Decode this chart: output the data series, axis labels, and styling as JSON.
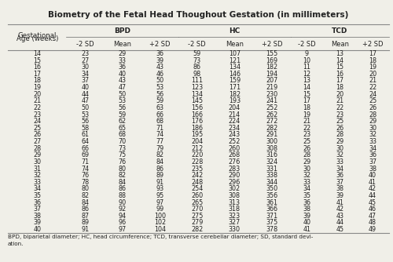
{
  "title": "Biometry of the Fetal Head Thoughout Gestation (in millimeters)",
  "col_headers": [
    "BPD",
    "HC",
    "TCD"
  ],
  "sub_headers": [
    "-2 SD",
    "Mean",
    "+2 SD",
    "-2 SD",
    "Mean",
    "+2 SD",
    "-2 SD",
    "Mean",
    "+2 SD"
  ],
  "row_label_line1": "Gestational",
  "row_label_line2": "Age (weeks)",
  "footnote": "BPD, biparietal diameter; HC, head circumference; TCD, transverse cerebellar diameter; SD, standard devi-\nation.",
  "rows": [
    [
      14,
      23,
      29,
      36,
      59,
      107,
      155,
      9,
      13,
      17
    ],
    [
      15,
      27,
      33,
      39,
      73,
      121,
      169,
      10,
      14,
      18
    ],
    [
      16,
      30,
      36,
      43,
      86,
      134,
      182,
      11,
      15,
      19
    ],
    [
      17,
      34,
      40,
      46,
      98,
      146,
      194,
      12,
      16,
      20
    ],
    [
      18,
      37,
      43,
      50,
      111,
      159,
      207,
      13,
      17,
      21
    ],
    [
      19,
      40,
      47,
      53,
      123,
      171,
      219,
      14,
      18,
      22
    ],
    [
      20,
      44,
      50,
      56,
      134,
      182,
      230,
      15,
      20,
      24
    ],
    [
      21,
      47,
      53,
      59,
      145,
      193,
      241,
      17,
      21,
      25
    ],
    [
      22,
      50,
      56,
      63,
      156,
      204,
      252,
      18,
      22,
      26
    ],
    [
      23,
      53,
      59,
      66,
      166,
      214,
      262,
      19,
      23,
      28
    ],
    [
      24,
      56,
      62,
      68,
      176,
      224,
      272,
      21,
      25,
      29
    ],
    [
      25,
      58,
      65,
      71,
      186,
      234,
      282,
      22,
      26,
      30
    ],
    [
      26,
      61,
      68,
      74,
      195,
      243,
      291,
      23,
      28,
      32
    ],
    [
      27,
      64,
      70,
      77,
      204,
      252,
      300,
      25,
      29,
      33
    ],
    [
      28,
      66,
      73,
      79,
      212,
      260,
      308,
      26,
      30,
      34
    ],
    [
      29,
      69,
      75,
      82,
      220,
      268,
      316,
      28,
      32,
      36
    ],
    [
      30,
      71,
      76,
      84,
      228,
      276,
      324,
      29,
      33,
      37
    ],
    [
      31,
      74,
      80,
      86,
      235,
      283,
      331,
      30,
      34,
      38
    ],
    [
      32,
      76,
      82,
      89,
      242,
      290,
      338,
      32,
      36,
      40
    ],
    [
      33,
      78,
      84,
      91,
      248,
      296,
      344,
      33,
      37,
      41
    ],
    [
      34,
      80,
      86,
      93,
      254,
      302,
      350,
      34,
      38,
      42
    ],
    [
      35,
      82,
      88,
      95,
      260,
      308,
      356,
      35,
      39,
      44
    ],
    [
      36,
      84,
      90,
      97,
      265,
      313,
      361,
      36,
      41,
      45
    ],
    [
      37,
      86,
      92,
      99,
      270,
      318,
      366,
      38,
      42,
      46
    ],
    [
      38,
      87,
      94,
      100,
      275,
      323,
      371,
      39,
      43,
      47
    ],
    [
      39,
      89,
      96,
      102,
      279,
      327,
      375,
      40,
      44,
      48
    ],
    [
      40,
      91,
      97,
      104,
      282,
      330,
      378,
      41,
      45,
      49
    ]
  ],
  "bg_color": "#f0efe8",
  "title_fontsize": 7.5,
  "header_fontsize": 6.5,
  "cell_fontsize": 5.8,
  "footnote_fontsize": 5.2,
  "line_color": "#888888",
  "text_color": "#222222"
}
